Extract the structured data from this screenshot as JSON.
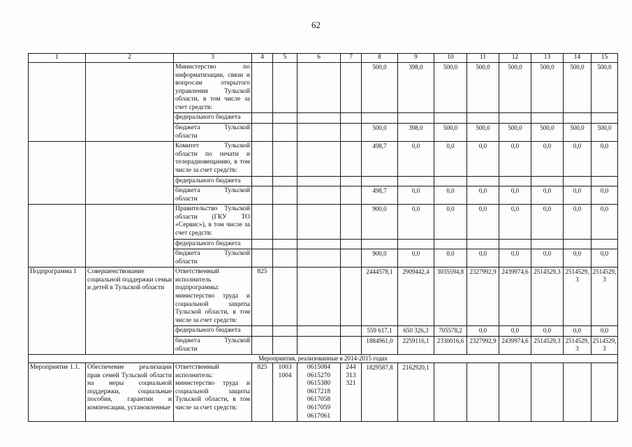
{
  "page_number": "62",
  "table": {
    "columns": [
      "1",
      "2",
      "3",
      "4",
      "5",
      "6",
      "7",
      "8",
      "9",
      "10",
      "11",
      "12",
      "13",
      "14",
      "15"
    ],
    "rows": [
      {
        "cells": [
          {
            "t": "",
            "r": 3
          },
          {
            "t": "",
            "r": 3
          },
          {
            "t": "Министерство по информатизации, связи и вопросам открытого управления Тульской области, в том числе за счет средств:",
            "k": "txt"
          },
          {},
          {},
          {},
          {},
          {
            "t": "500,0",
            "k": "num"
          },
          {
            "t": "398,0",
            "k": "num"
          },
          {
            "t": "500,0",
            "k": "num"
          },
          {
            "t": "500,0",
            "k": "num"
          },
          {
            "t": "500,0",
            "k": "num"
          },
          {
            "t": "500,0",
            "k": "num"
          },
          {
            "t": "500,0",
            "k": "num"
          },
          {
            "t": "500,0",
            "k": "num"
          }
        ]
      },
      {
        "cells": [
          {
            "t": "федерального бюджета",
            "k": "txt"
          },
          {},
          {},
          {},
          {},
          {},
          {},
          {},
          {},
          {},
          {},
          {},
          {}
        ]
      },
      {
        "cells": [
          {
            "t": "бюджета Тульской области",
            "k": "txt"
          },
          {},
          {},
          {},
          {},
          {
            "t": "500,0",
            "k": "num"
          },
          {
            "t": "398,0",
            "k": "num"
          },
          {
            "t": "500,0",
            "k": "num"
          },
          {
            "t": "500,0",
            "k": "num"
          },
          {
            "t": "500,0",
            "k": "num"
          },
          {
            "t": "500,0",
            "k": "num"
          },
          {
            "t": "500,0",
            "k": "num"
          },
          {
            "t": "500,0",
            "k": "num"
          }
        ]
      },
      {
        "cells": [
          {
            "t": "",
            "r": 3
          },
          {
            "t": "",
            "r": 3
          },
          {
            "t": "Комитет Тульской области по печати и телерадиовещанию, в том числе за счет средств:",
            "k": "txt"
          },
          {},
          {},
          {},
          {},
          {
            "t": "498,7",
            "k": "num"
          },
          {
            "t": "0,0",
            "k": "num"
          },
          {
            "t": "0,0",
            "k": "num"
          },
          {
            "t": "0,0",
            "k": "num"
          },
          {
            "t": "0,0",
            "k": "num"
          },
          {
            "t": "0,0",
            "k": "num"
          },
          {
            "t": "0,0",
            "k": "num"
          },
          {
            "t": "0,0",
            "k": "num"
          }
        ]
      },
      {
        "cells": [
          {
            "t": "федерального бюджета",
            "k": "txt"
          },
          {},
          {},
          {},
          {},
          {},
          {},
          {},
          {},
          {},
          {},
          {},
          {}
        ]
      },
      {
        "cells": [
          {
            "t": "бюджета Тульской области",
            "k": "txt"
          },
          {},
          {},
          {},
          {},
          {
            "t": "498,7",
            "k": "num"
          },
          {
            "t": "0,0",
            "k": "num"
          },
          {
            "t": "0,0",
            "k": "num"
          },
          {
            "t": "0,0",
            "k": "num"
          },
          {
            "t": "0,0",
            "k": "num"
          },
          {
            "t": "0,0",
            "k": "num"
          },
          {
            "t": "0,0",
            "k": "num"
          },
          {
            "t": "0,0",
            "k": "num"
          }
        ]
      },
      {
        "cells": [
          {
            "t": "",
            "r": 3
          },
          {
            "t": "",
            "r": 3
          },
          {
            "t": "Правительство Тульской области (ГКУ ТО «Сервис»), в том числе за счет средств:",
            "k": "txt"
          },
          {},
          {},
          {},
          {},
          {
            "t": "900,0",
            "k": "num"
          },
          {
            "t": "0,0",
            "k": "num"
          },
          {
            "t": "0,0",
            "k": "num"
          },
          {
            "t": "0,0",
            "k": "num"
          },
          {
            "t": "0,0",
            "k": "num"
          },
          {
            "t": "0,0",
            "k": "num"
          },
          {
            "t": "0,0",
            "k": "num"
          },
          {
            "t": "0,0",
            "k": "num"
          }
        ]
      },
      {
        "cells": [
          {
            "t": "федерального бюджета",
            "k": "txt"
          },
          {},
          {},
          {},
          {},
          {},
          {},
          {},
          {},
          {},
          {},
          {},
          {}
        ]
      },
      {
        "cells": [
          {
            "t": "бюджета Тульской области",
            "k": "txt"
          },
          {},
          {},
          {},
          {},
          {
            "t": "900,0",
            "k": "num"
          },
          {
            "t": "0,0",
            "k": "num"
          },
          {
            "t": "0,0",
            "k": "num"
          },
          {
            "t": "0,0",
            "k": "num"
          },
          {
            "t": "0,0",
            "k": "num"
          },
          {
            "t": "0,0",
            "k": "num"
          },
          {
            "t": "0,0",
            "k": "num"
          },
          {
            "t": "0,0",
            "k": "num"
          }
        ]
      },
      {
        "cells": [
          {
            "t": "Подпрограмма 1",
            "r": 3,
            "k": "lbl"
          },
          {
            "t": "Совершенствование социальной поддержки семьи и детей в Тульской области",
            "r": 3,
            "k": "txt"
          },
          {
            "t": "Ответственный исполнитель подпрограммы: министерство труда и социальной защиты Тульской области, в том числе за счет средств:",
            "k": "txt"
          },
          {
            "t": "825",
            "k": "ctr"
          },
          {},
          {},
          {},
          {
            "t": "2444578,1",
            "k": "num"
          },
          {
            "t": "2909442,4",
            "k": "num"
          },
          {
            "t": "3035594,8",
            "k": "num"
          },
          {
            "t": "2327992,9",
            "k": "num"
          },
          {
            "t": "2439974,6",
            "k": "num"
          },
          {
            "t": "2514529,3",
            "k": "num"
          },
          {
            "t": "2514529,3",
            "k": "num"
          },
          {
            "t": "2514529,3",
            "k": "num"
          }
        ]
      },
      {
        "cells": [
          {
            "t": "федерального бюджета",
            "k": "txt"
          },
          {},
          {},
          {},
          {},
          {
            "t": "559 617,1",
            "k": "num"
          },
          {
            "t": "650 326,3",
            "k": "num"
          },
          {
            "t": "705578,2",
            "k": "num"
          },
          {
            "t": "0,0",
            "k": "num"
          },
          {
            "t": "0,0",
            "k": "num"
          },
          {
            "t": "0,0",
            "k": "num"
          },
          {
            "t": "0,0",
            "k": "num"
          },
          {
            "t": "0,0",
            "k": "num"
          }
        ]
      },
      {
        "cells": [
          {
            "t": "бюджета Тульской области",
            "k": "txt"
          },
          {},
          {},
          {},
          {},
          {
            "t": "1884961,0",
            "k": "num"
          },
          {
            "t": "2259116,1",
            "k": "num"
          },
          {
            "t": "2330016,6",
            "k": "num"
          },
          {
            "t": "2327992,9",
            "k": "num"
          },
          {
            "t": "2439974,6",
            "k": "num"
          },
          {
            "t": "2514529,3",
            "k": "num"
          },
          {
            "t": "2514529,3",
            "k": "num"
          },
          {
            "t": "2514529,3",
            "k": "num"
          }
        ]
      },
      {
        "cells": [
          {
            "t": "Мероприятия, реализованные в 2014-2015 годах",
            "c": 15,
            "k": "div",
            "n": "section-divider"
          }
        ]
      },
      {
        "cells": [
          {
            "t": "Мероприятие 1.1.",
            "k": "lbl"
          },
          {
            "t": "Обеспечение реализации прав семей Тульской области на меры социальной поддержки, социальные пособия, гарантии и компенсации, установленные",
            "k": "txt"
          },
          {
            "t": "Ответственный исполнитель: министерство труда и социальной защиты Тульской области, в том числе за счет средств:",
            "k": "txt"
          },
          {
            "t": "825",
            "k": "ctr"
          },
          {
            "t": "1003\n1004",
            "k": "code"
          },
          {
            "t": "0615084\n0615270\n0615380\n0617218\n0617058\n0617059\n0617061",
            "k": "code"
          },
          {
            "t": "244\n313\n321",
            "k": "code"
          },
          {
            "t": "1829587,8",
            "k": "num"
          },
          {
            "t": "2162920,1",
            "k": "num"
          },
          {},
          {},
          {},
          {},
          {},
          {}
        ]
      }
    ]
  }
}
